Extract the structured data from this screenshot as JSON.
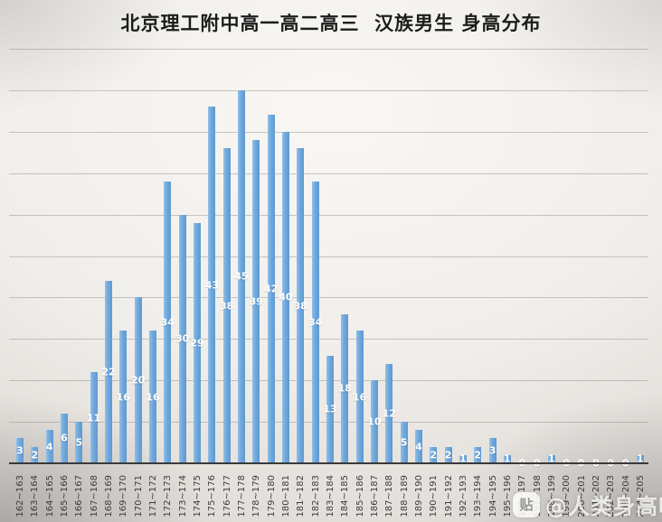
{
  "title": "北京理工附中高一高二高三  汉族男生 身高分布",
  "watermark": {
    "icon_glyph": "贴",
    "text": "@人类身高吧"
  },
  "chart_data": {
    "type": "bar",
    "title": "北京理工附中高一高二高三  汉族男生 身高分布",
    "categories": [
      "162~163",
      "163~164",
      "164~165",
      "165~166",
      "166~167",
      "167~168",
      "168~169",
      "169~170",
      "170~171",
      "171~172",
      "172~173",
      "173~174",
      "174~175",
      "175~176",
      "176~177",
      "177~178",
      "178~179",
      "179~180",
      "180~181",
      "181~182",
      "182~183",
      "183~184",
      "184~185",
      "185~186",
      "186~187",
      "187~188",
      "188~189",
      "189~190",
      "190~191",
      "191~192",
      "192~193",
      "193~194",
      "194~195",
      "195~196",
      "196~197",
      "197~198",
      "198~199",
      "199~200",
      "200~201",
      "201~202",
      "202~203",
      "203~204",
      "204~205"
    ],
    "values": [
      3,
      2,
      4,
      6,
      5,
      11,
      22,
      16,
      20,
      16,
      34,
      30,
      29,
      43,
      38,
      45,
      39,
      42,
      40,
      38,
      34,
      13,
      18,
      16,
      10,
      12,
      5,
      4,
      2,
      2,
      1,
      2,
      3,
      1,
      0,
      0,
      1,
      0,
      0,
      0,
      0,
      0,
      1
    ],
    "xlabel": "",
    "ylabel": "",
    "ylim": [
      0,
      50
    ],
    "grid_step": 5,
    "grid": true,
    "legend": "none",
    "y_tick_labels_visible": false,
    "data_label_position": "center",
    "bar_color": "#6fa8dc",
    "data_label_color": "#ffffff",
    "gridline_color": "#8c8a86",
    "axis_line_color": "#3a3a3a"
  }
}
